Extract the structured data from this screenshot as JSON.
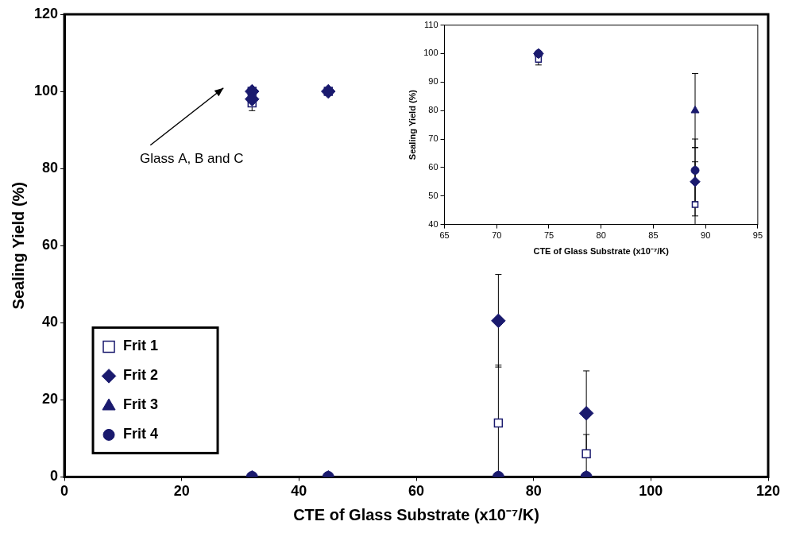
{
  "chart_data": [
    {
      "type": "scatter",
      "x_label": "CTE of Glass Substrate (x10⁻⁷/K)",
      "y_label": "Sealing Yield (%)",
      "xlim": [
        0,
        120
      ],
      "xticks": [
        0,
        20,
        40,
        60,
        80,
        100,
        120
      ],
      "ylim": [
        0,
        120
      ],
      "yticks": [
        0,
        20,
        40,
        60,
        80,
        100,
        120
      ],
      "grid": false,
      "legend": "lower left",
      "annotations": [
        {
          "text": "Glass A, B and C",
          "x": 32,
          "y": 98
        }
      ],
      "series": [
        {
          "name": "Frit 1",
          "color": "#1a1a6e",
          "marker": "square-open",
          "x": [
            32,
            32,
            45,
            74,
            89
          ],
          "values": [
            100,
            97,
            100,
            14,
            6
          ],
          "errors": [
            null,
            2,
            null,
            15,
            5
          ]
        },
        {
          "name": "Frit 2",
          "color": "#1a1a6e",
          "marker": "diamond",
          "x": [
            32,
            32,
            45,
            74,
            89
          ],
          "values": [
            100,
            98,
            100,
            40.5,
            16.5
          ],
          "errors": [
            null,
            1.5,
            null,
            12,
            11
          ]
        },
        {
          "name": "Frit 3",
          "color": "#1a1a6e",
          "marker": "triangle",
          "x": [
            32,
            45,
            74,
            89
          ],
          "values": [
            0,
            0,
            0,
            0
          ],
          "errors": [
            null,
            null,
            null,
            null
          ]
        },
        {
          "name": "Frit 4",
          "color": "#1a1a6e",
          "marker": "circle",
          "x": [
            32,
            45,
            74,
            89
          ],
          "values": [
            0,
            0,
            0,
            0
          ],
          "errors": [
            null,
            null,
            null,
            null
          ]
        }
      ]
    },
    {
      "type": "scatter",
      "x_label": "CTE of Glass Substrate (x10⁻⁷/K)",
      "y_label": "Sealing Yield (%)",
      "xlim": [
        65,
        95
      ],
      "xticks": [
        65,
        70,
        75,
        80,
        85,
        90,
        95
      ],
      "ylim": [
        40,
        110
      ],
      "yticks": [
        40,
        50,
        60,
        70,
        80,
        90,
        100,
        110
      ],
      "grid": false,
      "series": [
        {
          "name": "Frit 1",
          "color": "#1a1a6e",
          "marker": "square-open",
          "x": [
            74,
            89
          ],
          "values": [
            98,
            47
          ],
          "errors": [
            2,
            15
          ]
        },
        {
          "name": "Frit 2",
          "color": "#1a1a6e",
          "marker": "diamond",
          "x": [
            74,
            89
          ],
          "values": [
            100,
            55
          ],
          "errors": [
            null,
            12
          ]
        },
        {
          "name": "Frit 3",
          "color": "#1a1a6e",
          "marker": "triangle",
          "x": [
            74,
            89
          ],
          "values": [
            100,
            80
          ],
          "errors": [
            null,
            13
          ]
        },
        {
          "name": "Frit 4",
          "color": "#1a1a6e",
          "marker": "circle",
          "x": [
            74,
            89
          ],
          "values": [
            100,
            59
          ],
          "errors": [
            null,
            11
          ]
        }
      ]
    }
  ]
}
